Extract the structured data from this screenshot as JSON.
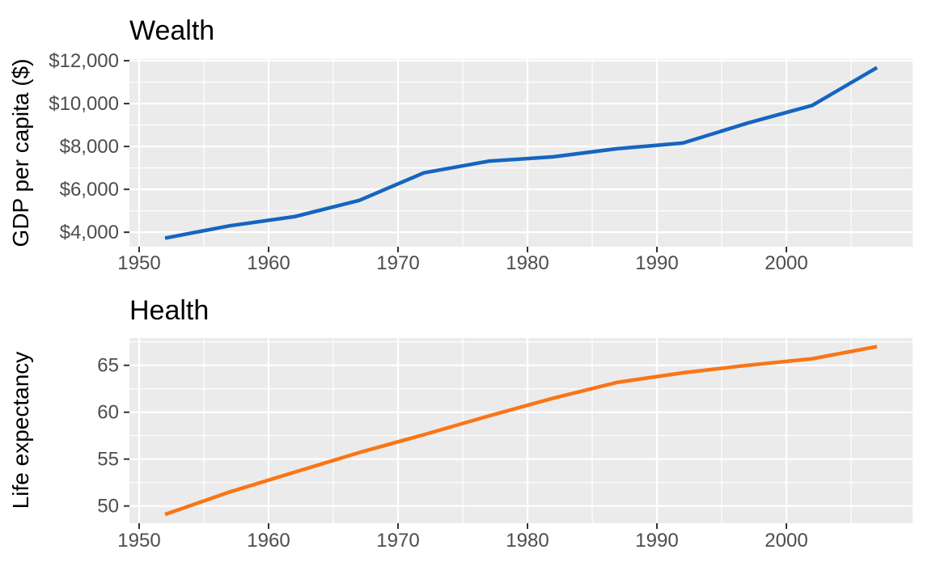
{
  "style": {
    "plot_bg": "#FFFFFF",
    "panel_bg": "#EBEBEB",
    "grid_color": "#FFFFFF",
    "tick_text_color": "#4D4D4D",
    "tick_mark_color": "#333333",
    "title_color": "#000000",
    "wealth_line_color": "#1565C0",
    "health_line_color": "#F97516"
  },
  "chart_data": [
    {
      "type": "line",
      "title": "Wealth",
      "xlabel": "",
      "ylabel": "GDP per capita ($)",
      "series_name": "GDP per capita",
      "series_color": "#1565C0",
      "x": [
        1952,
        1957,
        1962,
        1967,
        1972,
        1977,
        1982,
        1987,
        1992,
        1997,
        2002,
        2007
      ],
      "values": [
        3725,
        4299,
        4726,
        5484,
        6770,
        7313,
        7519,
        7901,
        8159,
        9090,
        9918,
        11680
      ],
      "xlim": [
        1949.25,
        2009.75
      ],
      "ylim": [
        3327,
        12078
      ],
      "xticks": {
        "values": [
          1950,
          1960,
          1970,
          1980,
          1990,
          2000
        ],
        "labels": [
          "1950",
          "1960",
          "1970",
          "1980",
          "1990",
          "2000"
        ]
      },
      "yticks": {
        "values": [
          4000,
          6000,
          8000,
          10000,
          12000
        ],
        "labels": [
          "$4,000",
          "$6,000",
          "$8,000",
          "$10,000",
          "$12,000"
        ]
      },
      "grid": "major-and-minor",
      "legend": "none"
    },
    {
      "type": "line",
      "title": "Health",
      "xlabel": "",
      "ylabel": "Life expectancy",
      "series_name": "Life expectancy",
      "series_color": "#F97516",
      "x": [
        1952,
        1957,
        1962,
        1967,
        1972,
        1977,
        1982,
        1987,
        1992,
        1997,
        2002,
        2007
      ],
      "values": [
        49.1,
        51.5,
        53.6,
        55.7,
        57.6,
        59.6,
        61.5,
        63.2,
        64.2,
        65.0,
        65.7,
        67.0
      ],
      "xlim": [
        1949.25,
        2009.75
      ],
      "ylim": [
        48.16,
        67.91
      ],
      "xticks": {
        "values": [
          1950,
          1960,
          1970,
          1980,
          1990,
          2000
        ],
        "labels": [
          "1950",
          "1960",
          "1970",
          "1980",
          "1990",
          "2000"
        ]
      },
      "yticks": {
        "values": [
          50,
          55,
          60,
          65
        ],
        "labels": [
          "50",
          "55",
          "60",
          "65"
        ]
      },
      "grid": "major-and-minor",
      "legend": "none"
    }
  ]
}
